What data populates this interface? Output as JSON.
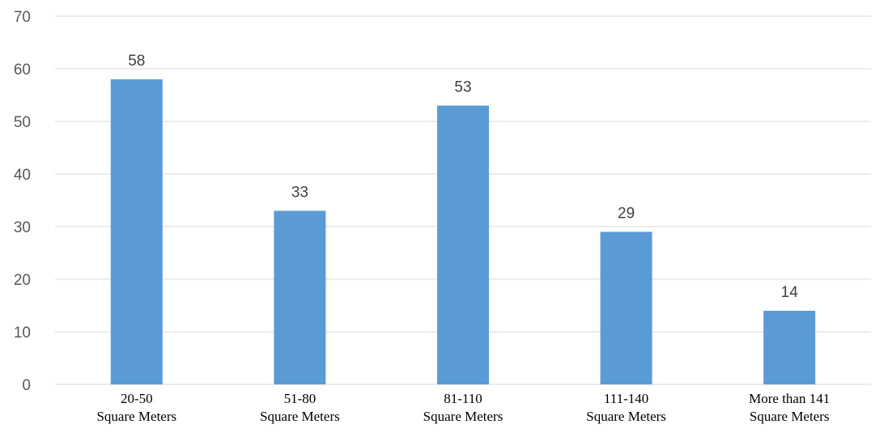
{
  "chart_data": {
    "type": "bar",
    "categories": [
      [
        "20-50",
        "Square Meters"
      ],
      [
        "51-80",
        "Square Meters"
      ],
      [
        "81-110",
        "Square Meters"
      ],
      [
        "111-140",
        "Square Meters"
      ],
      [
        "More than 141",
        "Square Meters"
      ]
    ],
    "values": [
      58,
      33,
      53,
      29,
      14
    ],
    "data_labels": [
      "58",
      "33",
      "53",
      "29",
      "14"
    ],
    "ylim": [
      0,
      70
    ],
    "yticks": [
      0,
      10,
      20,
      30,
      40,
      50,
      60,
      70
    ],
    "grid": true,
    "legend": "none",
    "bar_color": "#5b9bd5",
    "grid_color": "#d9d9d9"
  }
}
